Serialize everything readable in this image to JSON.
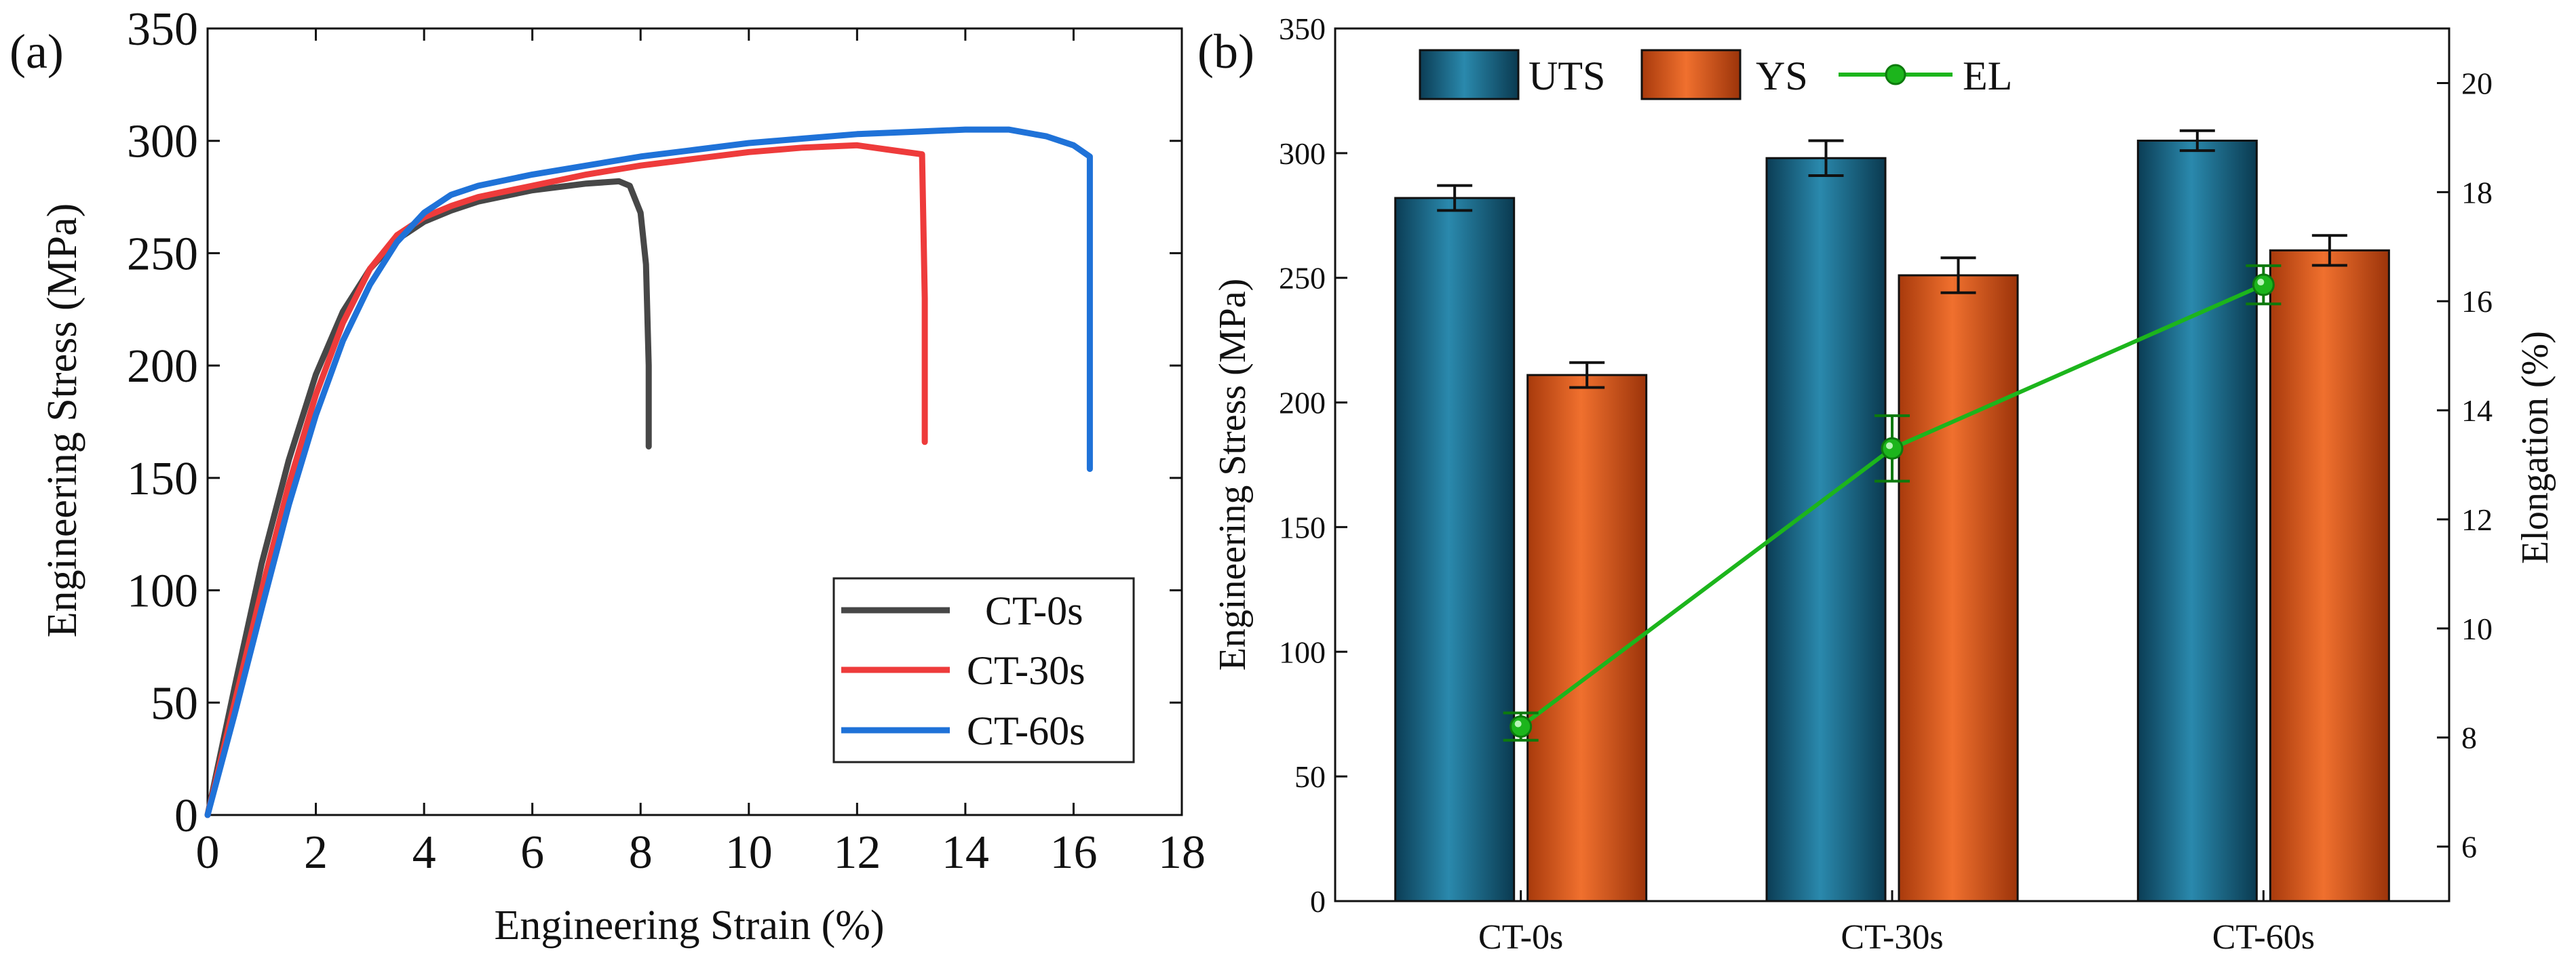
{
  "chart_data": [
    {
      "type": "line",
      "panel_label": "(a)",
      "xlabel": "Engineering Strain (%)",
      "ylabel": "Engineering Stress (MPa)",
      "xlim": [
        0,
        18
      ],
      "ylim": [
        0,
        350
      ],
      "xticks": [
        "0",
        "2",
        "4",
        "6",
        "8",
        "10",
        "12",
        "14",
        "16",
        "18"
      ],
      "yticks": [
        "0",
        "50",
        "100",
        "150",
        "200",
        "250",
        "300",
        "350"
      ],
      "legend_position": "bottom-right",
      "series": [
        {
          "name": "CT-0s",
          "color": "#474747",
          "x": [
            0,
            0.5,
            1,
            1.5,
            2,
            2.5,
            3,
            3.5,
            4,
            4.5,
            5,
            6,
            7,
            7.6,
            7.8,
            8.0,
            8.1,
            8.15,
            8.15
          ],
          "y": [
            0,
            57,
            112,
            158,
            196,
            224,
            243,
            256,
            264,
            269,
            273,
            278,
            281,
            282,
            280,
            268,
            245,
            200,
            164
          ]
        },
        {
          "name": "CT-30s",
          "color": "#ee3b3b",
          "x": [
            0,
            0.5,
            1,
            1.5,
            2,
            2.5,
            3,
            3.5,
            4,
            4.5,
            5,
            6,
            7,
            8,
            9,
            10,
            11,
            12,
            12.6,
            13.2,
            13.25,
            13.25
          ],
          "y": [
            0,
            50,
            100,
            147,
            187,
            219,
            243,
            258,
            266,
            271,
            275,
            280,
            285,
            289,
            292,
            295,
            297,
            298,
            296,
            294,
            230,
            166
          ]
        },
        {
          "name": "CT-60s",
          "color": "#1f72d8",
          "x": [
            0,
            0.5,
            1,
            1.5,
            2,
            2.5,
            3,
            3.5,
            4,
            4.5,
            5,
            6,
            7,
            8,
            9,
            10,
            11,
            12,
            13,
            14,
            14.8,
            15.5,
            16.0,
            16.3,
            16.3
          ],
          "y": [
            0,
            45,
            92,
            138,
            178,
            211,
            236,
            255,
            268,
            276,
            280,
            285,
            289,
            293,
            296,
            299,
            301,
            303,
            304,
            305,
            305,
            302,
            298,
            293,
            154
          ]
        }
      ]
    },
    {
      "type": "bar",
      "panel_label": "(b)",
      "categories": [
        "CT-0s",
        "CT-30s",
        "CT-60s"
      ],
      "ylabel": "Engineering Stress (MPa)",
      "ylabel_right": "Elongation (%)",
      "ylim": [
        0,
        350
      ],
      "ylim_right": [
        5,
        21
      ],
      "yticks": [
        "0",
        "50",
        "100",
        "150",
        "200",
        "250",
        "300",
        "350"
      ],
      "yticks_right": [
        "6",
        "8",
        "10",
        "12",
        "14",
        "16",
        "18",
        "20"
      ],
      "legend_position": "top-left",
      "series": [
        {
          "name": "UTS",
          "kind": "bar",
          "color": "#1a6f8f",
          "values": [
            282,
            298,
            305
          ],
          "errors": [
            5,
            7,
            4
          ]
        },
        {
          "name": "YS",
          "kind": "bar",
          "color": "#ea5a1f",
          "values": [
            211,
            251,
            261
          ],
          "errors": [
            5,
            7,
            6
          ]
        },
        {
          "name": "EL",
          "kind": "line",
          "axis": "right",
          "color": "#1cb51c",
          "values": [
            8.2,
            13.3,
            16.3
          ],
          "errors": [
            0.25,
            0.6,
            0.35
          ]
        }
      ]
    }
  ]
}
